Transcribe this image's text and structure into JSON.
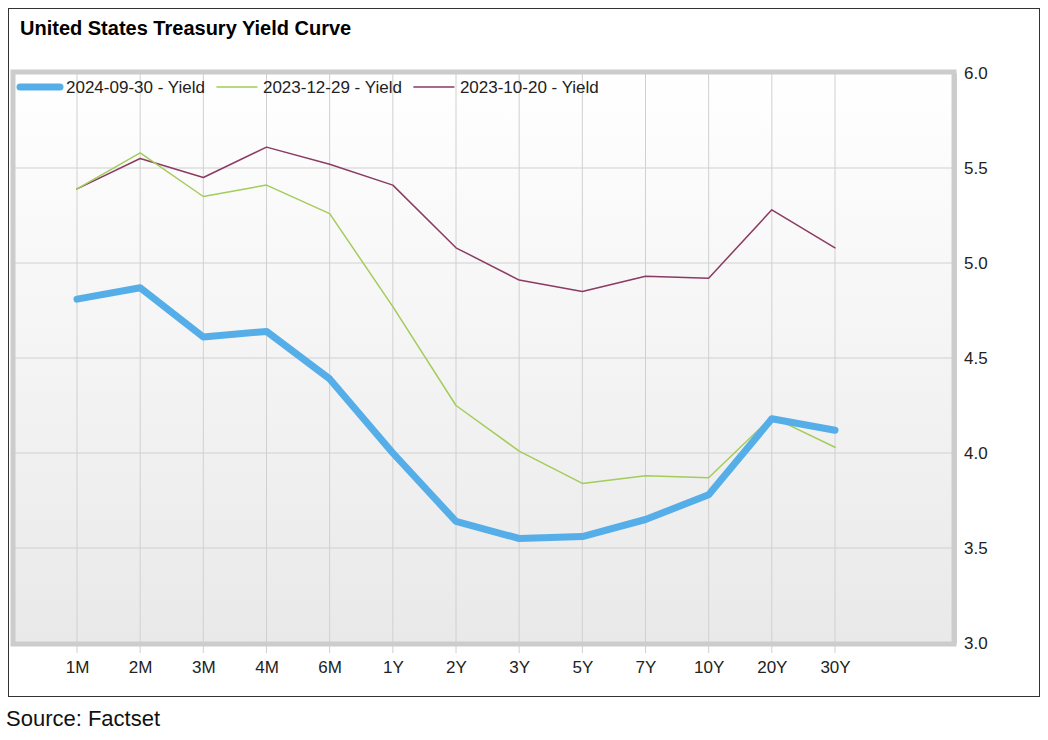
{
  "chart_data": {
    "type": "line",
    "title": "United States Treasury Yield Curve",
    "source": "Source: Factset",
    "categories": [
      "1M",
      "2M",
      "3M",
      "4M",
      "6M",
      "1Y",
      "2Y",
      "3Y",
      "5Y",
      "7Y",
      "10Y",
      "20Y",
      "30Y"
    ],
    "series": [
      {
        "name": "2024-09-30 - Yield",
        "color": "#55aee8",
        "values": [
          4.81,
          4.87,
          4.61,
          4.64,
          4.39,
          4.0,
          3.64,
          3.55,
          3.56,
          3.65,
          3.78,
          4.18,
          4.12
        ]
      },
      {
        "name": "2023-12-29 - Yield",
        "color": "#a3cc5a",
        "values": [
          5.39,
          5.58,
          5.35,
          5.41,
          5.26,
          4.77,
          4.25,
          4.01,
          3.84,
          3.88,
          3.87,
          4.19,
          4.03
        ]
      },
      {
        "name": "2023-10-20 - Yield",
        "color": "#8b3a62",
        "values": [
          5.39,
          5.55,
          5.45,
          5.61,
          5.52,
          5.41,
          5.08,
          4.91,
          4.85,
          4.93,
          4.92,
          5.28,
          5.08
        ]
      }
    ],
    "ylim": [
      3.0,
      6.0
    ],
    "yticks": [
      {
        "value": 3.0,
        "label": "3.0"
      },
      {
        "value": 3.5,
        "label": "3.5"
      },
      {
        "value": 4.0,
        "label": "4.0"
      },
      {
        "value": 4.5,
        "label": "4.5"
      },
      {
        "value": 5.0,
        "label": "5.0"
      },
      {
        "value": 5.5,
        "label": "5.5"
      },
      {
        "value": 6.0,
        "label": "6.0"
      }
    ],
    "grid": true,
    "legend": "top-left"
  }
}
